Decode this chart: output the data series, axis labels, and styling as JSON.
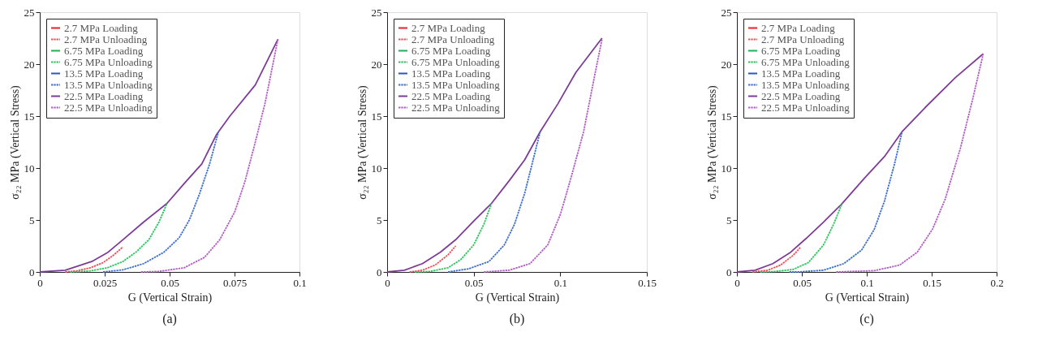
{
  "chart_data": [
    {
      "type": "line",
      "title": "(a)",
      "xlabel": "G (Vertical Strain)",
      "ylabel": "σ₂₂ MPa (Vertical Stress)",
      "xlim": [
        0,
        0.1
      ],
      "ylim": [
        0,
        25
      ],
      "xticks": [
        0,
        0.025,
        0.05,
        0.075,
        0.1
      ],
      "yticks": [
        0,
        5,
        10,
        15,
        20,
        25
      ],
      "grid": false,
      "legend": "top left",
      "marker": "none",
      "series": [
        {
          "name": "2.7 MPa Loading",
          "color": "#ee1c25",
          "line_style": "solid"
        },
        {
          "name": "2.7 MPa Unloading",
          "color": "#f0505a",
          "line_style": "dotted",
          "x": [
            0.0098,
            0.0146,
            0.0195,
            0.0244,
            0.0283,
            0.032
          ],
          "values": [
            0,
            0.12,
            0.4,
            0.9,
            1.6,
            2.4
          ]
        },
        {
          "name": "6.75 MPa Loading",
          "color": "#1db34a",
          "line_style": "solid"
        },
        {
          "name": "6.75 MPa Unloading",
          "color": "#2ec45c",
          "line_style": "dotted",
          "x": [
            0.0117,
            0.0195,
            0.026,
            0.032,
            0.037,
            0.042,
            0.0459,
            0.049
          ],
          "values": [
            0,
            0.1,
            0.4,
            1.0,
            1.9,
            3.1,
            4.8,
            6.6
          ]
        },
        {
          "name": "13.5 MPa Loading",
          "color": "#2857b8",
          "line_style": "solid"
        },
        {
          "name": "13.5 MPa Unloading",
          "color": "#3f6fd0",
          "line_style": "dotted",
          "x": [
            0.0244,
            0.032,
            0.04,
            0.0478,
            0.0537,
            0.0576,
            0.0615,
            0.0654,
            0.0688
          ],
          "values": [
            0,
            0.2,
            0.8,
            1.9,
            3.3,
            5.0,
            7.5,
            10.4,
            13.5
          ]
        },
        {
          "name": "22.5 MPa Loading",
          "color": "#7d3c98",
          "line_style": "solid",
          "x": [
            0,
            0.0098,
            0.02,
            0.0263,
            0.032,
            0.04,
            0.049,
            0.0556,
            0.0624,
            0.068,
            0.0732,
            0.083,
            0.0917
          ],
          "values": [
            0,
            0.17,
            1.0,
            1.9,
            3.1,
            4.8,
            6.6,
            8.5,
            10.4,
            13.2,
            15.0,
            18.0,
            22.4
          ]
        },
        {
          "name": "22.5 MPa Unloading",
          "color": "#b35fc8",
          "line_style": "dotted",
          "x": [
            0.039,
            0.0459,
            0.0556,
            0.0634,
            0.0693,
            0.0751,
            0.079,
            0.0829,
            0.0868,
            0.0917
          ],
          "values": [
            0,
            0.05,
            0.4,
            1.4,
            3.1,
            5.8,
            8.7,
            12.4,
            16.3,
            22.4
          ]
        }
      ]
    },
    {
      "type": "line",
      "title": "(b)",
      "xlabel": "G (Vertical Strain)",
      "ylabel": "σ₂₂ MPa (Vertical Stress)",
      "xlim": [
        0,
        0.15
      ],
      "ylim": [
        0,
        25
      ],
      "xticks": [
        0,
        0.05,
        0.1,
        0.15
      ],
      "yticks": [
        0,
        5,
        10,
        15,
        20,
        25
      ],
      "grid": false,
      "legend": "top left",
      "marker": "none",
      "series": [
        {
          "name": "2.7 MPa Loading",
          "color": "#ee1c25",
          "line_style": "solid"
        },
        {
          "name": "2.7 MPa Unloading",
          "color": "#f0505a",
          "line_style": "dotted",
          "x": [
            0.013,
            0.0204,
            0.0278,
            0.0352,
            0.0396
          ],
          "values": [
            0,
            0.17,
            0.67,
            1.65,
            2.5
          ]
        },
        {
          "name": "6.75 MPa Loading",
          "color": "#1db34a",
          "line_style": "solid"
        },
        {
          "name": "6.75 MPa Unloading",
          "color": "#2ec45c",
          "line_style": "dotted",
          "x": [
            0.016,
            0.0248,
            0.0352,
            0.0426,
            0.05,
            0.0559,
            0.0603
          ],
          "values": [
            0,
            0.05,
            0.4,
            1.2,
            2.6,
            4.6,
            6.6
          ]
        },
        {
          "name": "13.5 MPa Loading",
          "color": "#2857b8",
          "line_style": "solid"
        },
        {
          "name": "13.5 MPa Unloading",
          "color": "#3f6fd0",
          "line_style": "dotted",
          "x": [
            0.0352,
            0.047,
            0.0588,
            0.0677,
            0.0736,
            0.0795,
            0.0839,
            0.0884
          ],
          "values": [
            0,
            0.3,
            1.0,
            2.6,
            4.6,
            7.6,
            10.5,
            13.5
          ]
        },
        {
          "name": "22.5 MPa Loading",
          "color": "#7d3c98",
          "line_style": "solid",
          "x": [
            0,
            0.01,
            0.0204,
            0.0307,
            0.0396,
            0.05,
            0.0603,
            0.0706,
            0.0795,
            0.0884,
            0.0987,
            0.109,
            0.1241
          ],
          "values": [
            0,
            0.17,
            0.8,
            1.9,
            3.1,
            4.9,
            6.6,
            8.8,
            10.8,
            13.5,
            16.2,
            19.2,
            22.5
          ]
        },
        {
          "name": "22.5 MPa Unloading",
          "color": "#b35fc8",
          "line_style": "dotted",
          "x": [
            0.0559,
            0.0706,
            0.0825,
            0.0928,
            0.1002,
            0.1061,
            0.1135,
            0.1194,
            0.1241
          ],
          "values": [
            0,
            0.17,
            0.8,
            2.6,
            5.6,
            9.0,
            13.5,
            18.5,
            22.4
          ]
        }
      ]
    },
    {
      "type": "line",
      "title": "(c)",
      "xlabel": "G (Vertical Strain)",
      "ylabel": "σ₂₂ MPa (Vertical Stress)",
      "xlim": [
        0,
        0.2
      ],
      "ylim": [
        0,
        25
      ],
      "xticks": [
        0,
        0.05,
        0.1,
        0.15,
        0.2
      ],
      "yticks": [
        0,
        5,
        10,
        15,
        20,
        25
      ],
      "grid": false,
      "legend": "top left",
      "marker": "none",
      "series": [
        {
          "name": "2.7 MPa Loading",
          "color": "#ee1c25",
          "line_style": "solid"
        },
        {
          "name": "2.7 MPa Unloading",
          "color": "#f0505a",
          "line_style": "dotted",
          "x": [
            0.0121,
            0.0238,
            0.0336,
            0.0433,
            0.0492
          ],
          "values": [
            0,
            0.17,
            0.66,
            1.6,
            2.4
          ]
        },
        {
          "name": "6.75 MPa Loading",
          "color": "#1db34a",
          "line_style": "solid"
        },
        {
          "name": "6.75 MPa Unloading",
          "color": "#2ec45c",
          "line_style": "dotted",
          "x": [
            0.018,
            0.0297,
            0.0433,
            0.055,
            0.0667,
            0.0745,
            0.081
          ],
          "values": [
            0,
            0.05,
            0.24,
            0.9,
            2.6,
            4.6,
            6.6
          ]
        },
        {
          "name": "13.5 MPa Loading",
          "color": "#2857b8",
          "line_style": "solid"
        },
        {
          "name": "13.5 MPa Unloading",
          "color": "#3f6fd0",
          "line_style": "dotted",
          "x": [
            0.0404,
            0.0472,
            0.0667,
            0.0823,
            0.096,
            0.1058,
            0.1136,
            0.1214,
            0.1272
          ],
          "values": [
            0,
            0,
            0.17,
            0.8,
            2.1,
            4.1,
            6.8,
            10.4,
            13.5
          ]
        },
        {
          "name": "22.5 MPa Loading",
          "color": "#7d3c98",
          "line_style": "solid",
          "x": [
            0,
            0.014,
            0.0277,
            0.0414,
            0.0531,
            0.0667,
            0.0804,
            0.098,
            0.1136,
            0.1272,
            0.1448,
            0.1682,
            0.1897
          ],
          "values": [
            0,
            0.17,
            0.8,
            1.9,
            3.2,
            4.8,
            6.5,
            9.0,
            11.1,
            13.5,
            15.8,
            18.7,
            21.0
          ]
        },
        {
          "name": "22.5 MPa Unloading",
          "color": "#b35fc8",
          "line_style": "dotted",
          "x": [
            0.0765,
            0.1058,
            0.1253,
            0.1389,
            0.1506,
            0.1604,
            0.1721,
            0.1819,
            0.1897
          ],
          "values": [
            0,
            0.12,
            0.66,
            1.9,
            4.1,
            7.0,
            11.9,
            16.8,
            21.0
          ]
        }
      ]
    }
  ]
}
